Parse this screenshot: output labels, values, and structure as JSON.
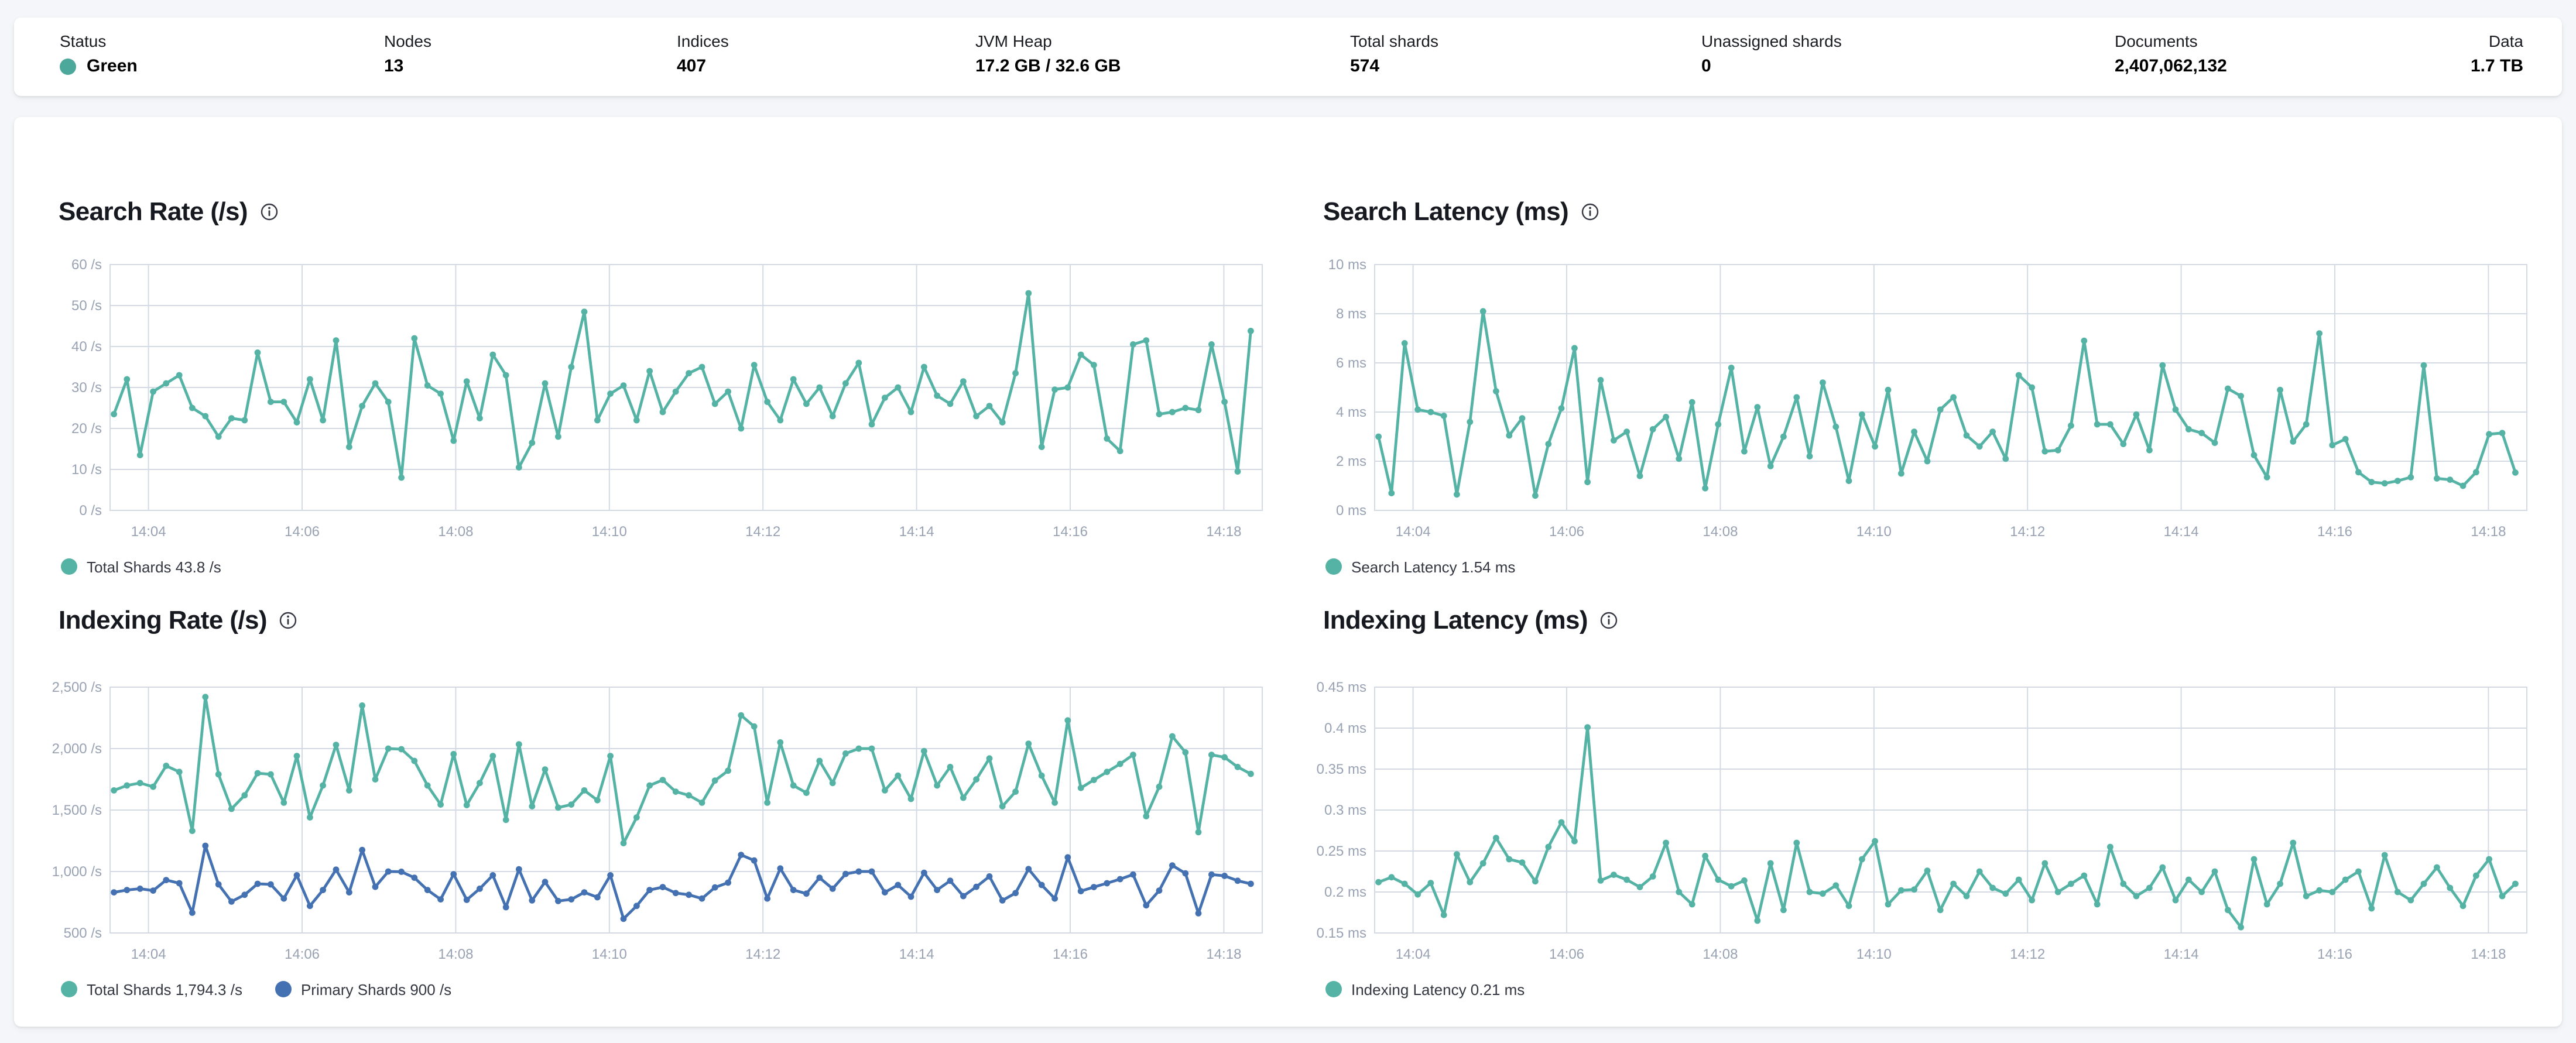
{
  "status_bar": {
    "health_dot_color": "#4da89c",
    "items": [
      {
        "label": "Status",
        "value": "Green"
      },
      {
        "label": "Nodes",
        "value": "13"
      },
      {
        "label": "Indices",
        "value": "407"
      },
      {
        "label": "JVM Heap",
        "value": "17.2 GB / 32.6 GB"
      },
      {
        "label": "Total shards",
        "value": "574"
      },
      {
        "label": "Unassigned shards",
        "value": "0"
      },
      {
        "label": "Documents",
        "value": "2,407,062,132"
      },
      {
        "label": "Data",
        "value": "1.7 TB"
      }
    ]
  },
  "chart_data": [
    {
      "type": "line",
      "title": "Search Rate (/s)",
      "ylim": [
        0,
        60
      ],
      "y_ticks": [
        0,
        10,
        20,
        30,
        40,
        50,
        60
      ],
      "y_tick_labels": [
        "0 /s",
        "10 /s",
        "20 /s",
        "30 /s",
        "40 /s",
        "50 /s",
        "60 /s"
      ],
      "x_domain_minutes": [
        3.5,
        18.5
      ],
      "x_data_minutes": [
        3.55,
        18.35
      ],
      "x_tick_minutes": [
        4,
        6,
        8,
        10,
        12,
        14,
        16,
        18
      ],
      "x_tick_labels": [
        "14:04",
        "14:06",
        "14:08",
        "14:10",
        "14:12",
        "14:14",
        "14:16",
        "14:18"
      ],
      "grid": true,
      "legend_position": "bottom",
      "series": [
        {
          "name": "Total Shards",
          "legend_label": "Total Shards 43.8 /s",
          "color": "#54b3a4",
          "values": [
            23.5,
            32,
            13.5,
            29,
            31,
            33,
            25,
            23,
            18,
            22.5,
            22,
            38.5,
            26.5,
            26.5,
            21.5,
            32,
            22,
            41.5,
            15.5,
            25.5,
            31,
            26.5,
            8,
            42,
            30.5,
            28.5,
            17,
            31.5,
            22.5,
            38,
            33,
            10.5,
            16.5,
            31,
            18,
            35,
            48.5,
            22,
            28.5,
            30.5,
            22,
            34,
            24,
            29,
            33.5,
            35,
            26,
            29,
            20,
            35.5,
            26.5,
            22,
            32,
            26,
            30,
            23,
            31,
            36,
            21,
            27.5,
            30,
            24,
            35,
            28,
            26,
            31.5,
            23,
            25.5,
            21.5,
            33.5,
            53,
            15.5,
            29.5,
            30,
            38,
            35.5,
            17.5,
            14.5,
            40.5,
            41.5,
            23.5,
            24,
            25,
            24.5,
            40.5,
            26.5,
            9.5,
            43.8
          ]
        }
      ]
    },
    {
      "type": "line",
      "title": "Search Latency (ms)",
      "ylim": [
        0,
        10
      ],
      "y_ticks": [
        0,
        2,
        4,
        6,
        8,
        10
      ],
      "y_tick_labels": [
        "0 ms",
        "2 ms",
        "4 ms",
        "6 ms",
        "8 ms",
        "10 ms"
      ],
      "x_domain_minutes": [
        3.5,
        18.5
      ],
      "x_data_minutes": [
        3.55,
        18.35
      ],
      "x_tick_minutes": [
        4,
        6,
        8,
        10,
        12,
        14,
        16,
        18
      ],
      "x_tick_labels": [
        "14:04",
        "14:06",
        "14:08",
        "14:10",
        "14:12",
        "14:14",
        "14:16",
        "14:18"
      ],
      "grid": true,
      "legend_position": "bottom",
      "series": [
        {
          "name": "Search Latency",
          "legend_label": "Search Latency 1.54 ms",
          "color": "#54b3a4",
          "values": [
            3,
            0.7,
            6.8,
            4.1,
            4,
            3.85,
            0.65,
            3.6,
            8.1,
            4.85,
            3.05,
            3.75,
            0.6,
            2.7,
            4.15,
            6.6,
            1.15,
            5.3,
            2.85,
            3.2,
            1.4,
            3.3,
            3.8,
            2.1,
            4.4,
            0.9,
            3.5,
            5.8,
            2.4,
            4.2,
            1.8,
            3,
            4.6,
            2.2,
            5.2,
            3.4,
            1.2,
            3.9,
            2.6,
            4.9,
            1.5,
            3.2,
            2,
            4.1,
            4.6,
            3.05,
            2.6,
            3.2,
            2.1,
            5.5,
            5,
            2.4,
            2.45,
            3.45,
            6.9,
            3.5,
            3.5,
            2.7,
            3.9,
            2.45,
            5.9,
            4.1,
            3.3,
            3.15,
            2.75,
            4.95,
            4.65,
            2.25,
            1.35,
            4.9,
            2.8,
            3.5,
            7.2,
            2.65,
            2.9,
            1.55,
            1.15,
            1.1,
            1.2,
            1.35,
            5.9,
            1.3,
            1.25,
            1,
            1.55,
            3.1,
            3.15,
            1.54
          ]
        }
      ]
    },
    {
      "type": "line",
      "title": "Indexing Rate (/s)",
      "ylim": [
        500,
        2500
      ],
      "y_ticks": [
        500,
        1000,
        1500,
        2000,
        2500
      ],
      "y_tick_labels": [
        "500 /s",
        "1,000 /s",
        "1,500 /s",
        "2,000 /s",
        "2,500 /s"
      ],
      "x_domain_minutes": [
        3.5,
        18.5
      ],
      "x_data_minutes": [
        3.55,
        18.35
      ],
      "x_tick_minutes": [
        4,
        6,
        8,
        10,
        12,
        14,
        16,
        18
      ],
      "x_tick_labels": [
        "14:04",
        "14:06",
        "14:08",
        "14:10",
        "14:12",
        "14:14",
        "14:16",
        "14:18"
      ],
      "grid": true,
      "legend_position": "bottom",
      "series": [
        {
          "name": "Total Shards",
          "legend_label": "Total Shards 1,794.3 /s",
          "color": "#54b3a4",
          "values": [
            1660,
            1700,
            1720,
            1690,
            1860,
            1810,
            1330,
            2420,
            1790,
            1510,
            1620,
            1800,
            1790,
            1560,
            1940,
            1440,
            1700,
            2030,
            1660,
            2350,
            1750,
            2000,
            1995,
            1900,
            1700,
            1545,
            1955,
            1540,
            1720,
            1940,
            1420,
            2035,
            1530,
            1830,
            1520,
            1545,
            1660,
            1580,
            1940,
            1230,
            1440,
            1700,
            1745,
            1650,
            1620,
            1560,
            1740,
            1820,
            2270,
            2180,
            1560,
            2050,
            1700,
            1640,
            1900,
            1720,
            1960,
            2000,
            2000,
            1660,
            1780,
            1590,
            1980,
            1700,
            1850,
            1600,
            1750,
            1920,
            1530,
            1650,
            2040,
            1780,
            1560,
            2230,
            1680,
            1745,
            1810,
            1875,
            1950,
            1450,
            1690,
            2100,
            1970,
            1320,
            1950,
            1930,
            1850,
            1794.3
          ]
        },
        {
          "name": "Primary Shards",
          "legend_label": "Primary Shards 900 /s",
          "color": "#4471b1",
          "values": [
            830,
            850,
            860,
            845,
            930,
            905,
            665,
            1210,
            895,
            755,
            810,
            900,
            895,
            780,
            970,
            720,
            850,
            1015,
            830,
            1175,
            875,
            1000,
            998,
            950,
            850,
            773,
            978,
            770,
            860,
            970,
            710,
            1018,
            765,
            915,
            760,
            773,
            830,
            790,
            970,
            615,
            720,
            850,
            873,
            825,
            810,
            780,
            870,
            910,
            1135,
            1090,
            780,
            1025,
            850,
            820,
            950,
            860,
            980,
            1000,
            1000,
            830,
            890,
            795,
            990,
            850,
            925,
            800,
            875,
            960,
            765,
            825,
            1020,
            890,
            780,
            1115,
            840,
            873,
            905,
            938,
            975,
            725,
            845,
            1050,
            985,
            660,
            975,
            965,
            925,
            900
          ]
        }
      ]
    },
    {
      "type": "line",
      "title": "Indexing Latency (ms)",
      "ylim": [
        0.15,
        0.45
      ],
      "y_ticks": [
        0.15,
        0.2,
        0.25,
        0.3,
        0.35,
        0.4,
        0.45
      ],
      "y_tick_labels": [
        "0.15 ms",
        "0.2 ms",
        "0.25 ms",
        "0.3 ms",
        "0.35 ms",
        "0.4 ms",
        "0.45 ms"
      ],
      "x_domain_minutes": [
        3.5,
        18.5
      ],
      "x_data_minutes": [
        3.55,
        18.35
      ],
      "x_tick_minutes": [
        4,
        6,
        8,
        10,
        12,
        14,
        16,
        18
      ],
      "x_tick_labels": [
        "14:04",
        "14:06",
        "14:08",
        "14:10",
        "14:12",
        "14:14",
        "14:16",
        "14:18"
      ],
      "grid": true,
      "legend_position": "bottom",
      "series": [
        {
          "name": "Indexing Latency",
          "legend_label": "Indexing Latency 0.21 ms",
          "color": "#54b3a4",
          "values": [
            0.212,
            0.218,
            0.21,
            0.197,
            0.211,
            0.172,
            0.246,
            0.212,
            0.235,
            0.266,
            0.24,
            0.236,
            0.213,
            0.255,
            0.285,
            0.262,
            0.401,
            0.214,
            0.221,
            0.215,
            0.206,
            0.219,
            0.26,
            0.2,
            0.185,
            0.244,
            0.215,
            0.207,
            0.214,
            0.165,
            0.235,
            0.178,
            0.26,
            0.2,
            0.198,
            0.208,
            0.183,
            0.24,
            0.262,
            0.185,
            0.202,
            0.203,
            0.226,
            0.178,
            0.21,
            0.195,
            0.225,
            0.205,
            0.198,
            0.215,
            0.19,
            0.235,
            0.2,
            0.21,
            0.22,
            0.185,
            0.255,
            0.21,
            0.195,
            0.205,
            0.23,
            0.19,
            0.215,
            0.2,
            0.225,
            0.178,
            0.157,
            0.24,
            0.185,
            0.21,
            0.26,
            0.195,
            0.202,
            0.2,
            0.215,
            0.225,
            0.18,
            0.245,
            0.2,
            0.19,
            0.21,
            0.23,
            0.205,
            0.183,
            0.22,
            0.24,
            0.195,
            0.21
          ]
        }
      ]
    }
  ]
}
